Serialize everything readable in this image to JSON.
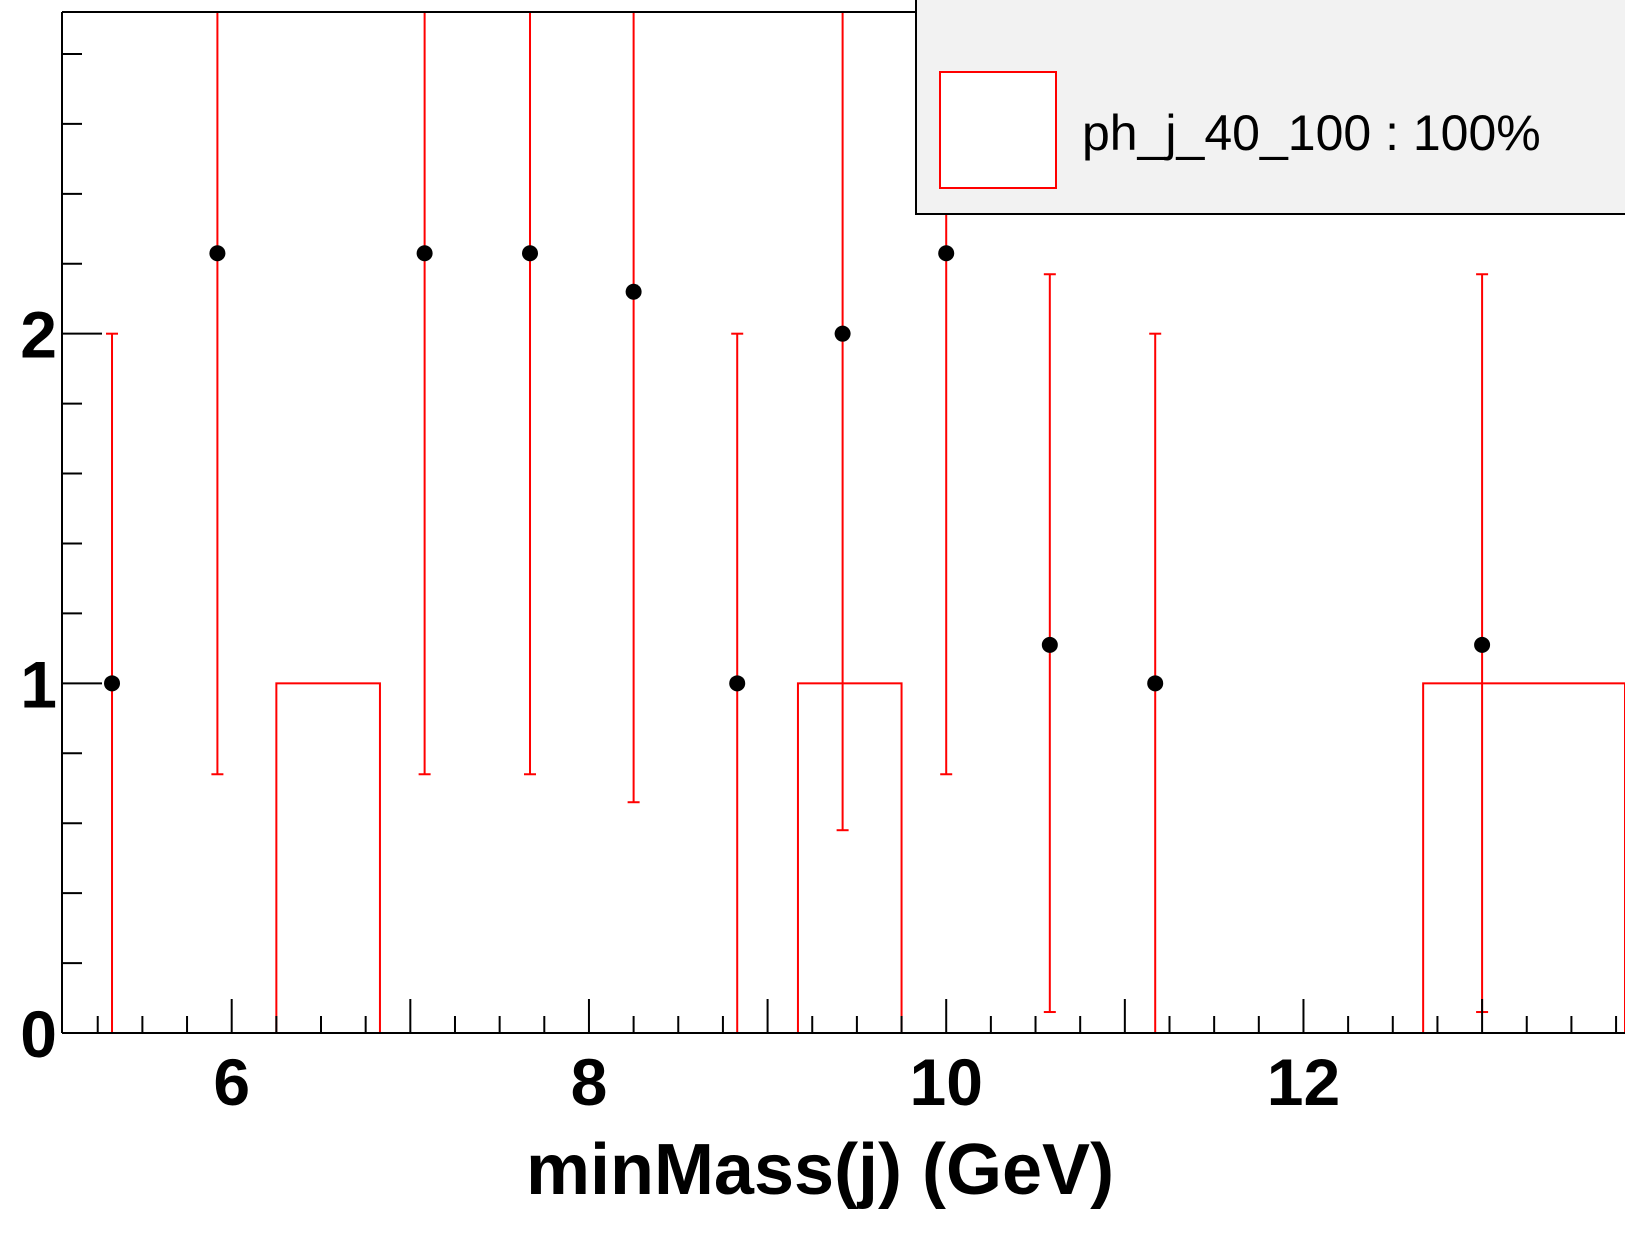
{
  "chart_data": {
    "type": "bar",
    "xlabel": "minMass(j) (GeV)",
    "ylabel": "",
    "xlim": [
      5.05,
      13.8
    ],
    "ylim": [
      0,
      2.92
    ],
    "x_ticks": [
      6,
      8,
      10,
      12
    ],
    "y_ticks": [
      0,
      1,
      2
    ],
    "grid": false,
    "legend": {
      "placement": "top-right",
      "entries": [
        {
          "label": "ph_j_40_100 : 100%",
          "color": "#ff0000",
          "style": "box"
        }
      ]
    },
    "series": [
      {
        "name": "ph_j_40_100 : 100%",
        "type": "histogram",
        "color": "#ff0000",
        "bins": [
          {
            "low": 6.25,
            "high": 6.83,
            "value": 1
          },
          {
            "low": 9.17,
            "high": 9.75,
            "value": 1
          },
          {
            "low": 12.67,
            "high": 13.8,
            "value": 1
          }
        ]
      },
      {
        "type": "points_with_errors",
        "marker_color": "#000000",
        "error_color": "#ff0000",
        "points": [
          {
            "x": 5.33,
            "y": 1.0,
            "low": 0.0,
            "high": 2.0
          },
          {
            "x": 5.92,
            "y": 2.23,
            "low": 0.74,
            "high": 2.92
          },
          {
            "x": 7.08,
            "y": 2.23,
            "low": 0.74,
            "high": 2.92
          },
          {
            "x": 7.67,
            "y": 2.23,
            "low": 0.74,
            "high": 2.92
          },
          {
            "x": 8.25,
            "y": 2.12,
            "low": 0.66,
            "high": 2.92
          },
          {
            "x": 8.83,
            "y": 1.0,
            "low": 0.0,
            "high": 2.0
          },
          {
            "x": 9.42,
            "y": 2.0,
            "low": 0.58,
            "high": 2.92
          },
          {
            "x": 10.0,
            "y": 2.23,
            "low": 0.74,
            "high": 2.92
          },
          {
            "x": 10.58,
            "y": 1.11,
            "low": 0.06,
            "high": 2.17
          },
          {
            "x": 11.17,
            "y": 1.0,
            "low": 0.0,
            "high": 2.0
          },
          {
            "x": 13.0,
            "y": 1.11,
            "low": 0.06,
            "high": 2.17
          }
        ]
      }
    ]
  }
}
